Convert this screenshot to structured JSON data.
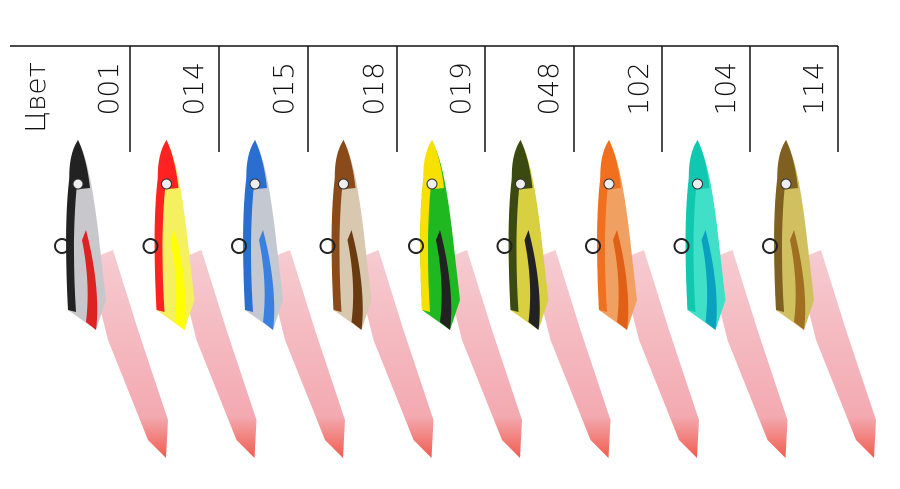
{
  "header": {
    "label": "Цвет",
    "codes": [
      "001",
      "014",
      "015",
      "018",
      "019",
      "048",
      "102",
      "104",
      "114"
    ]
  }
}
